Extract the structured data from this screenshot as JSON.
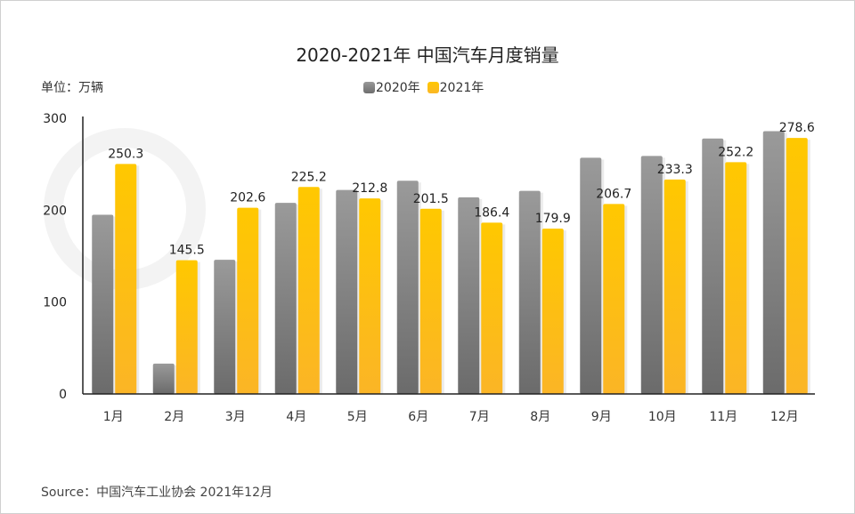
{
  "chart_data": {
    "type": "bar",
    "title": "2020-2021年 中国汽车月度销量",
    "unit_label": "单位：万辆",
    "categories": [
      "1月",
      "2月",
      "3月",
      "4月",
      "5月",
      "6月",
      "7月",
      "8月",
      "9月",
      "10月",
      "11月",
      "12月"
    ],
    "series": [
      {
        "name": "2020年",
        "color": "#808080",
        "values": [
          195,
          33,
          146,
          208,
          222,
          232,
          214,
          221,
          257,
          259,
          278,
          286
        ]
      },
      {
        "name": "2021年",
        "color": "#FFC000",
        "values": [
          250.3,
          145.5,
          202.6,
          225.2,
          212.8,
          201.5,
          186.4,
          179.9,
          206.7,
          233.3,
          252.2,
          278.6
        ],
        "data_labels": [
          "250.3",
          "145.5",
          "202.6",
          "225.2",
          "212.8",
          "201.5",
          "186.4",
          "179.9",
          "206.7",
          "233.3",
          "252.2",
          "278.6"
        ]
      }
    ],
    "yticks": [
      "0",
      "100",
      "200",
      "300"
    ],
    "ylim": [
      0,
      300
    ],
    "grid": false,
    "legend": "top-center",
    "source": "Source：中国汽车工业协会 2021年12月"
  }
}
